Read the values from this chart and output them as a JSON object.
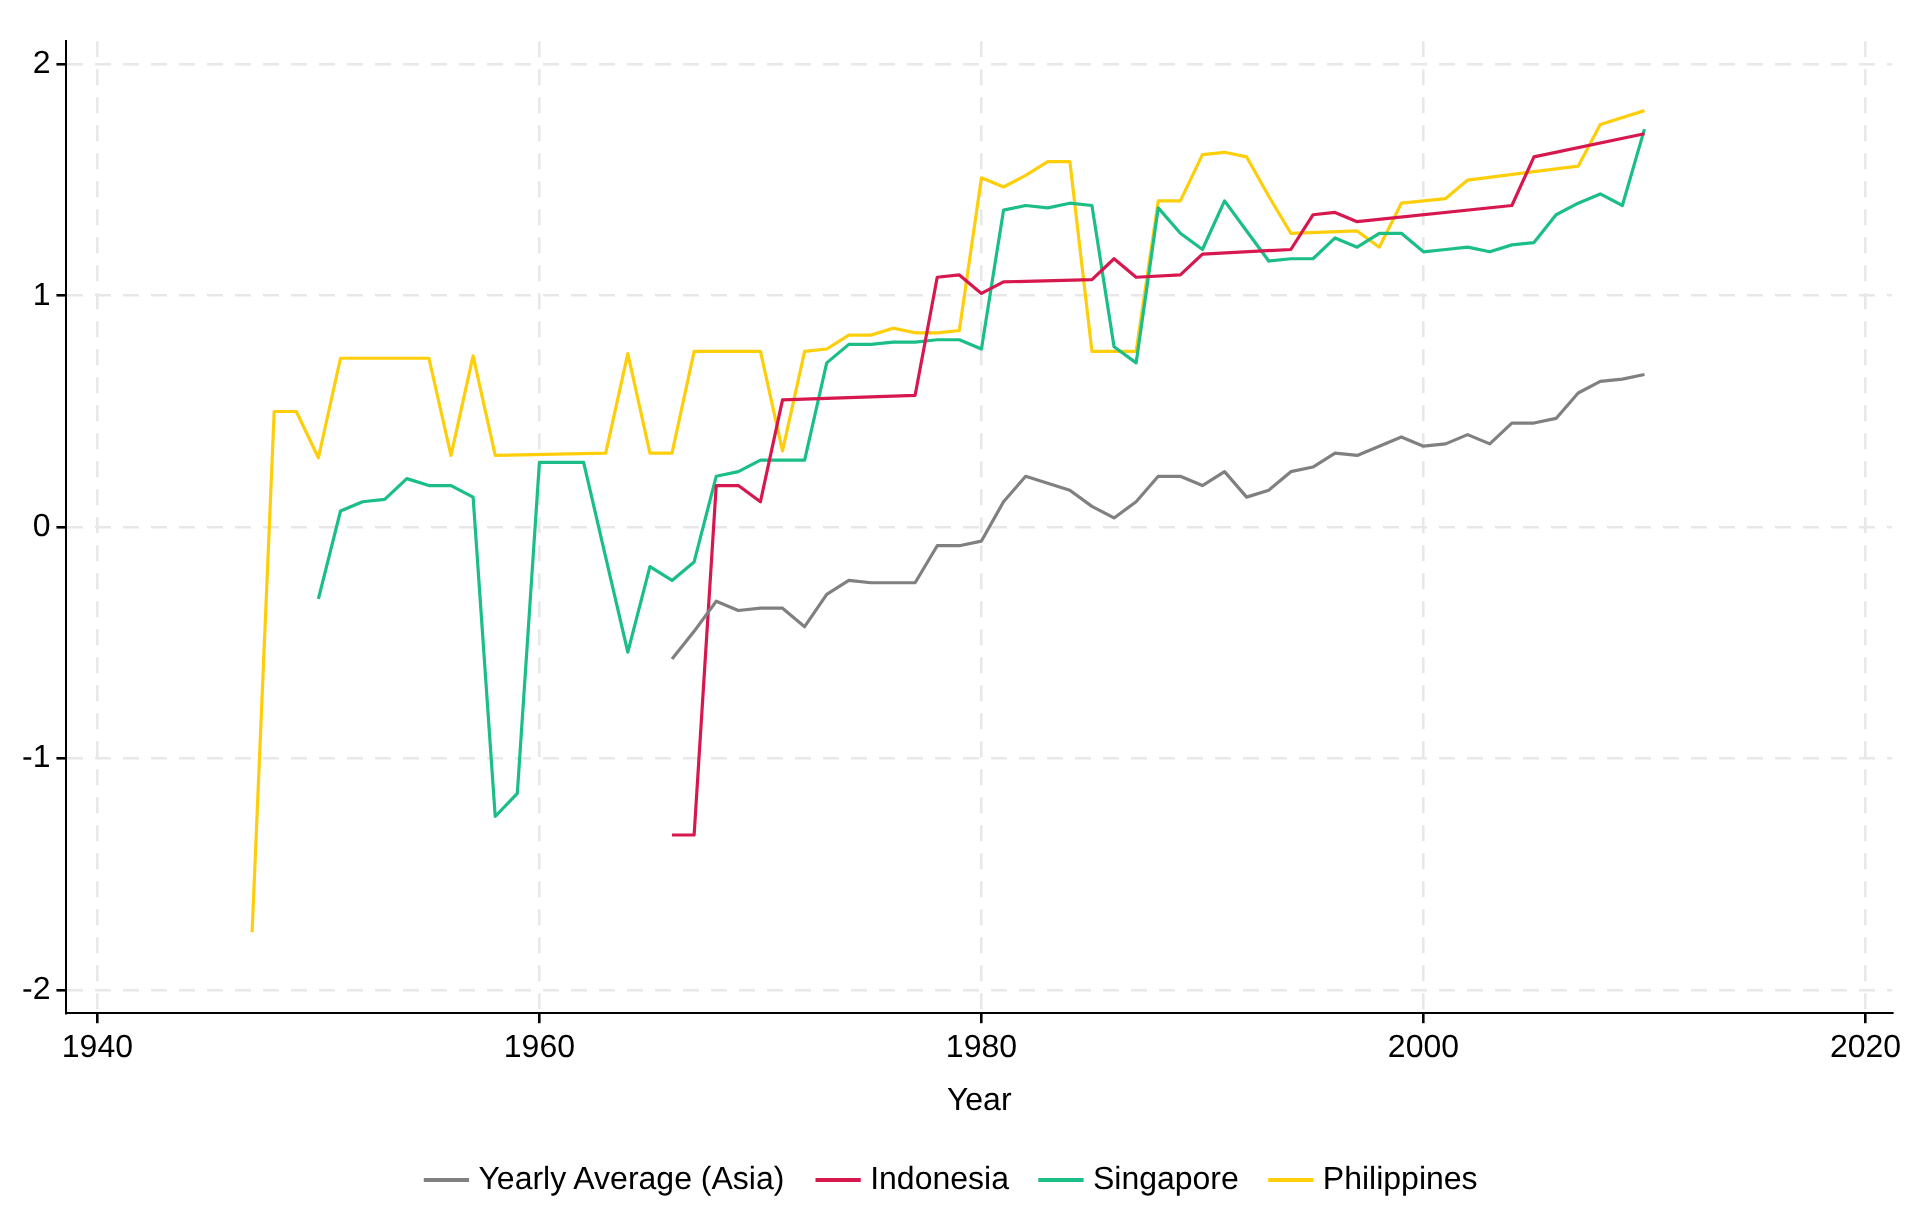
{
  "chart_data": {
    "type": "line",
    "xlabel": "Year",
    "xlim": [
      1938.6,
      2021.2
    ],
    "xticks": [
      1940,
      1960,
      1980,
      2000,
      2020
    ],
    "ylim": [
      -2.1,
      2.1
    ],
    "yticks": [
      -2,
      -1,
      0,
      1,
      2
    ],
    "grid": true,
    "legend": "bottom",
    "marker": "none",
    "line_style": "solid",
    "series": [
      {
        "name": "Yearly Average (Asia)",
        "color": "#808080",
        "x": [
          1966,
          1967,
          1968,
          1969,
          1970,
          1971,
          1972,
          1973,
          1974,
          1975,
          1976,
          1977,
          1978,
          1979,
          1980,
          1981,
          1982,
          1983,
          1984,
          1985,
          1986,
          1987,
          1988,
          1989,
          1990,
          1991,
          1992,
          1993,
          1994,
          1995,
          1996,
          1997,
          1998,
          1999,
          2000,
          2001,
          2002,
          2003,
          2004,
          2005,
          2006,
          2007,
          2008,
          2009,
          2010
        ],
        "values": [
          -0.57,
          -0.45,
          -0.32,
          -0.36,
          -0.35,
          -0.35,
          -0.43,
          -0.29,
          -0.23,
          -0.24,
          -0.24,
          -0.24,
          -0.08,
          -0.08,
          -0.06,
          0.11,
          0.22,
          0.19,
          0.16,
          0.09,
          0.04,
          0.11,
          0.22,
          0.22,
          0.18,
          0.24,
          0.13,
          0.16,
          0.24,
          0.26,
          0.32,
          0.31,
          0.35,
          0.39,
          0.35,
          0.36,
          0.4,
          0.36,
          0.45,
          0.45,
          0.47,
          0.58,
          0.63,
          0.64,
          0.66
        ]
      },
      {
        "name": "Indonesia",
        "color": "#d6184f",
        "x": [
          1966,
          1967,
          1968,
          1969,
          1970,
          1971,
          1977,
          1978,
          1979,
          1980,
          1981,
          1985,
          1986,
          1987,
          1989,
          1990,
          1994,
          1995,
          1996,
          1997,
          2004,
          2005,
          2010
        ],
        "values": [
          -1.33,
          -1.33,
          0.18,
          0.18,
          0.11,
          0.55,
          0.57,
          1.08,
          1.09,
          1.01,
          1.06,
          1.07,
          1.16,
          1.08,
          1.09,
          1.18,
          1.2,
          1.35,
          1.36,
          1.32,
          1.39,
          1.6,
          1.7
        ]
      },
      {
        "name": "Singapore",
        "color": "#1bbf86",
        "x": [
          1950,
          1951,
          1952,
          1953,
          1954,
          1955,
          1956,
          1957,
          1958,
          1959,
          1960,
          1961,
          1962,
          1963,
          1964,
          1965,
          1966,
          1967,
          1968,
          1969,
          1970,
          1971,
          1972,
          1973,
          1974,
          1975,
          1976,
          1977,
          1978,
          1979,
          1980,
          1981,
          1982,
          1983,
          1984,
          1985,
          1986,
          1987,
          1988,
          1989,
          1990,
          1991,
          1992,
          1993,
          1994,
          1995,
          1996,
          1997,
          1998,
          1999,
          2000,
          2001,
          2002,
          2003,
          2004,
          2005,
          2006,
          2007,
          2008,
          2009,
          2010
        ],
        "values": [
          -0.31,
          0.07,
          0.11,
          0.12,
          0.21,
          0.18,
          0.18,
          0.13,
          -1.25,
          -1.15,
          0.28,
          0.28,
          0.28,
          -0.13,
          -0.54,
          -0.17,
          -0.23,
          -0.15,
          0.22,
          0.24,
          0.29,
          0.29,
          0.29,
          0.71,
          0.79,
          0.79,
          0.8,
          0.8,
          0.81,
          0.81,
          0.77,
          1.37,
          1.39,
          1.38,
          1.4,
          1.39,
          0.78,
          0.71,
          1.38,
          1.27,
          1.2,
          1.41,
          1.28,
          1.15,
          1.16,
          1.16,
          1.25,
          1.21,
          1.27,
          1.27,
          1.19,
          1.2,
          1.21,
          1.19,
          1.22,
          1.23,
          1.35,
          1.4,
          1.44,
          1.39,
          1.72
        ]
      },
      {
        "name": "Philippines",
        "color": "#fece0a",
        "x": [
          1947,
          1948,
          1949,
          1950,
          1951,
          1955,
          1956,
          1957,
          1958,
          1963,
          1964,
          1965,
          1966,
          1967,
          1970,
          1971,
          1972,
          1973,
          1974,
          1975,
          1976,
          1977,
          1978,
          1979,
          1980,
          1981,
          1982,
          1983,
          1984,
          1985,
          1987,
          1988,
          1989,
          1990,
          1991,
          1992,
          1993,
          1994,
          1997,
          1998,
          1999,
          2000,
          2001,
          2002,
          2007,
          2008,
          2010
        ],
        "values": [
          -1.75,
          0.5,
          0.5,
          0.3,
          0.73,
          0.73,
          0.31,
          0.74,
          0.31,
          0.32,
          0.75,
          0.32,
          0.32,
          0.76,
          0.76,
          0.33,
          0.76,
          0.77,
          0.83,
          0.83,
          0.86,
          0.84,
          0.84,
          0.85,
          1.51,
          1.47,
          1.52,
          1.58,
          1.58,
          0.76,
          0.76,
          1.41,
          1.41,
          1.61,
          1.62,
          1.6,
          1.43,
          1.27,
          1.28,
          1.21,
          1.4,
          1.41,
          1.42,
          1.5,
          1.56,
          1.74,
          1.8
        ]
      }
    ]
  }
}
